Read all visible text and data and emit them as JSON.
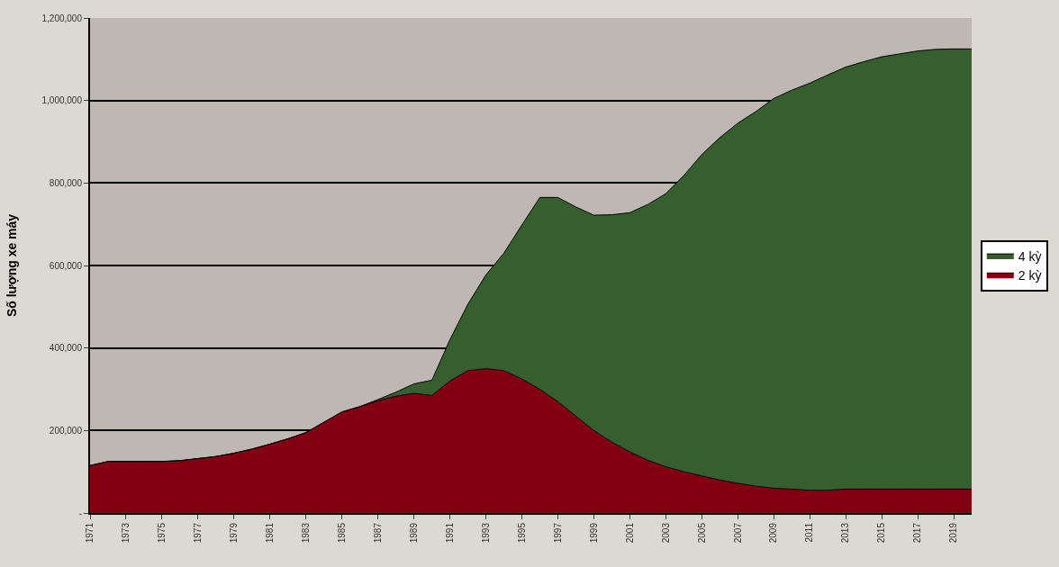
{
  "chart_data": {
    "type": "area",
    "stacked": true,
    "ylabel": "Số lượng xe máy",
    "x": [
      1971,
      1972,
      1973,
      1974,
      1975,
      1976,
      1977,
      1978,
      1979,
      1980,
      1981,
      1982,
      1983,
      1984,
      1985,
      1986,
      1987,
      1988,
      1989,
      1990,
      1991,
      1992,
      1993,
      1994,
      1995,
      1996,
      1997,
      1998,
      1999,
      2000,
      2001,
      2002,
      2003,
      2004,
      2005,
      2006,
      2007,
      2008,
      2009,
      2010,
      2011,
      2012,
      2013,
      2014,
      2015,
      2016,
      2017,
      2018,
      2019,
      2020
    ],
    "series": [
      {
        "name": "2 kỳ",
        "color": "#830012",
        "values": [
          115000,
          125000,
          125000,
          125000,
          125000,
          127000,
          132000,
          137000,
          145000,
          155000,
          167000,
          180000,
          195000,
          220000,
          245000,
          258000,
          272000,
          283000,
          290000,
          285000,
          320000,
          345000,
          350000,
          345000,
          325000,
          300000,
          270000,
          235000,
          200000,
          172000,
          148000,
          128000,
          112000,
          100000,
          90000,
          80000,
          72000,
          65000,
          60000,
          58000,
          55000,
          55000,
          58000,
          58000,
          58000,
          58000,
          58000,
          58000,
          58000,
          58000
        ]
      },
      {
        "name": "4 kỳ",
        "color": "#365e2f",
        "values": [
          0,
          0,
          0,
          0,
          0,
          0,
          0,
          0,
          0,
          0,
          0,
          0,
          0,
          0,
          0,
          0,
          3000,
          10000,
          23000,
          37000,
          100000,
          161000,
          227000,
          285000,
          373000,
          465000,
          495000,
          507000,
          522000,
          551000,
          580000,
          620000,
          662000,
          718000,
          779000,
          830000,
          873000,
          908000,
          945000,
          967000,
          987000,
          1007000,
          1023000,
          1036000,
          1048000,
          1055000,
          1062000,
          1066000,
          1067000,
          1067000
        ]
      }
    ],
    "xlim": [
      1971,
      2020
    ],
    "xticks": [
      1971,
      1973,
      1975,
      1977,
      1979,
      1981,
      1983,
      1985,
      1987,
      1989,
      1991,
      1993,
      1995,
      1997,
      1999,
      2001,
      2003,
      2005,
      2007,
      2009,
      2011,
      2013,
      2015,
      2017,
      2019
    ],
    "ylim": [
      0,
      1200000
    ],
    "yticks": [
      {
        "value": 0,
        "label": "-"
      },
      {
        "value": 200000,
        "label": "200,000"
      },
      {
        "value": 400000,
        "label": "400,000"
      },
      {
        "value": 600000,
        "label": "600,000"
      },
      {
        "value": 800000,
        "label": "800,000"
      },
      {
        "value": 1000000,
        "label": "1,000,000"
      },
      {
        "value": 1200000,
        "label": "1,200,000"
      }
    ],
    "grid": "y",
    "legend": "right"
  }
}
